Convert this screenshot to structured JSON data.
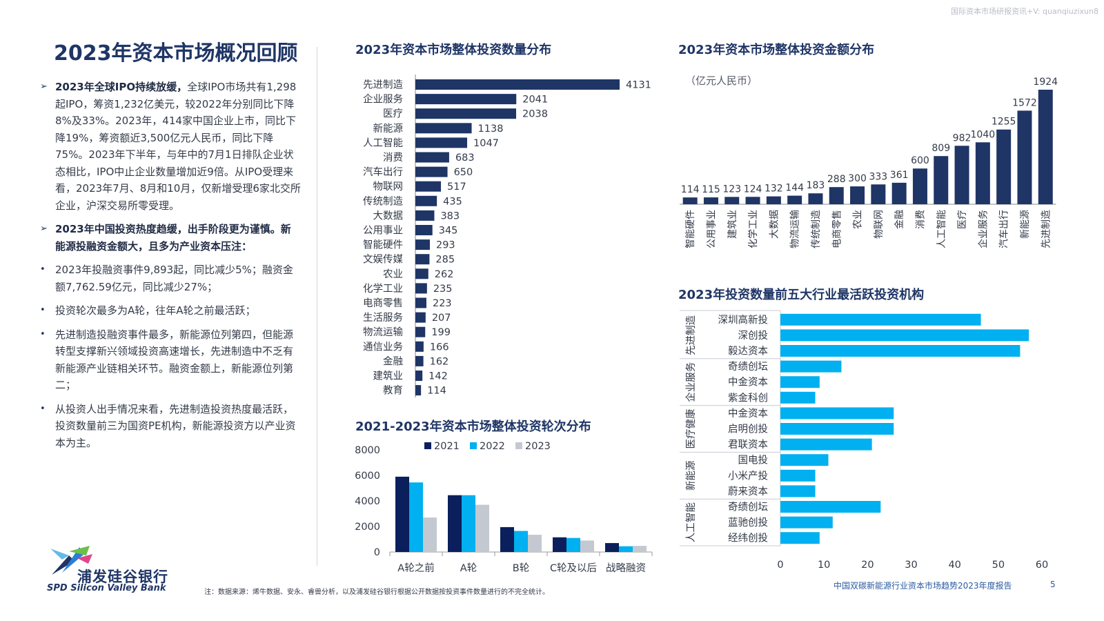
{
  "watermark": "国际资本市场研报资讯+V: quanqiuzixun8",
  "main_title": "2023年资本市场概况回顾",
  "left_text": {
    "p1_bold": "2023年全球IPO持续放缓，",
    "p1_rest": "全球IPO市场共有1,298起IPO，筹资1,232亿美元，较2022年分别同比下降8%及33%。2023年，414家中国企业上市，同比下降19%，筹资额近3,500亿元人民币，同比下降75%。2023年下半年，与年中的7月1日排队企业状态相比，IPO中止企业数量增加近9倍。从IPO受理来看，2023年7月、8月和10月，仅新增受理6家北交所企业，沪深交易所零受理。",
    "p2": "2023年中国投资热度趋缓，出手阶段更为谨慎。新能源投融资金额大，且多为产业资本压注：",
    "b1": "2023年投融资事件9,893起，同比减少5%；融资金额7,762.59亿元，同比减少27%；",
    "b2": "投资轮次最多为A轮，往年A轮之前最活跃；",
    "b3": "先进制造投融资事件最多，新能源位列第四，但能源转型支撑新兴领域投资高速增长，先进制造中不乏有新能源产业链相关环节。融资金额上，新能源位列第二；",
    "b4": "从投资人出手情况来看，先进制造投资热度最活跃，投资数量前三为国资PE机构，新能源投资方以产业资本为主。",
    "arrow": "➢",
    "dot": "•"
  },
  "logo": {
    "cn": "浦发硅谷银行",
    "en": "SPD Silicon Valley Bank"
  },
  "note": "注：数据来源：烯牛数据、安永、睿兽分析，以及浦发硅谷银行根据公开数据按投资事件数量进行的不完全统计。",
  "footer": "中国双碳新能源行业资本市场趋势2023年度报告",
  "page_number": "5",
  "colors": {
    "navy": "#1f3566",
    "bright_blue": "#00b0f0",
    "gray": "#c4c9d1",
    "dark_navy": "#0a1f5c"
  },
  "chart_data": [
    {
      "id": "count",
      "type": "bar",
      "orientation": "horizontal",
      "title": "2023年资本市场整体投资数量分布",
      "categories": [
        "先进制造",
        "企业服务",
        "医疗",
        "新能源",
        "人工智能",
        "消费",
        "汽车出行",
        "物联网",
        "传统制造",
        "大数据",
        "公用事业",
        "智能硬件",
        "文娱传媒",
        "农业",
        "化学工业",
        "电商零售",
        "生活服务",
        "物流运输",
        "通信业务",
        "金融",
        "建筑业",
        "教育"
      ],
      "values": [
        4131,
        2041,
        2038,
        1138,
        1047,
        683,
        650,
        517,
        435,
        383,
        345,
        293,
        285,
        262,
        235,
        223,
        207,
        199,
        166,
        162,
        142,
        114
      ]
    },
    {
      "id": "amount",
      "type": "bar",
      "orientation": "vertical",
      "title": "2023年资本市场整体投资金额分布",
      "unit_label": "（亿元人民币）",
      "categories": [
        "智能硬件",
        "公用事业",
        "建筑业",
        "化学工业",
        "大数据",
        "物流运输",
        "传统制造",
        "电商零售",
        "农业",
        "物联网",
        "金融",
        "消费",
        "人工智能",
        "医疗",
        "企业服务",
        "汽车出行",
        "新能源",
        "先进制造"
      ],
      "values": [
        114,
        115,
        123,
        124,
        132,
        144,
        183,
        288,
        300,
        333,
        361,
        600,
        809,
        982,
        1040,
        1255,
        1572,
        1924
      ]
    },
    {
      "id": "rounds",
      "type": "bar",
      "orientation": "vertical",
      "title": "2021-2023年资本市场整体投资轮次分布",
      "categories": [
        "A轮之前",
        "A轮",
        "B轮",
        "C轮及以后",
        "战略融资"
      ],
      "series": [
        {
          "name": "2021",
          "values": [
            5900,
            4450,
            1950,
            1150,
            700
          ]
        },
        {
          "name": "2022",
          "values": [
            5450,
            4450,
            1650,
            1100,
            450
          ]
        },
        {
          "name": "2023",
          "values": [
            2700,
            3700,
            1350,
            900,
            480
          ]
        }
      ],
      "ylim": [
        0,
        8000
      ],
      "yticks": [
        "0",
        "2000",
        "4000",
        "6000",
        "8000"
      ]
    },
    {
      "id": "investors",
      "type": "bar",
      "orientation": "horizontal",
      "title": "2023年投资数量前五大行业最活跃投资机构",
      "groups": [
        {
          "name": "先进制造",
          "items": [
            {
              "name": "深圳高新投",
              "value": 46
            },
            {
              "name": "深创投",
              "value": 57
            },
            {
              "name": "毅达资本",
              "value": 55
            }
          ]
        },
        {
          "name": "企业服务",
          "items": [
            {
              "name": "奇绩创坛",
              "value": 14
            },
            {
              "name": "中金资本",
              "value": 9
            },
            {
              "name": "紫金科创",
              "value": 8
            }
          ]
        },
        {
          "name": "医疗健康",
          "items": [
            {
              "name": "中金资本",
              "value": 26
            },
            {
              "name": "启明创投",
              "value": 26
            },
            {
              "name": "君联资本",
              "value": 21
            }
          ]
        },
        {
          "name": "新能源",
          "items": [
            {
              "name": "国电投",
              "value": 11
            },
            {
              "name": "小米产投",
              "value": 8
            },
            {
              "name": "蔚来资本",
              "value": 8
            }
          ]
        },
        {
          "name": "人工智能",
          "items": [
            {
              "name": "奇绩创坛",
              "value": 23
            },
            {
              "name": "蓝驰创投",
              "value": 12
            },
            {
              "name": "经纬创投",
              "value": 9
            }
          ]
        }
      ],
      "xlim": [
        0,
        60
      ],
      "xticks": [
        "0",
        "10",
        "20",
        "30",
        "40",
        "50",
        "60"
      ]
    }
  ]
}
